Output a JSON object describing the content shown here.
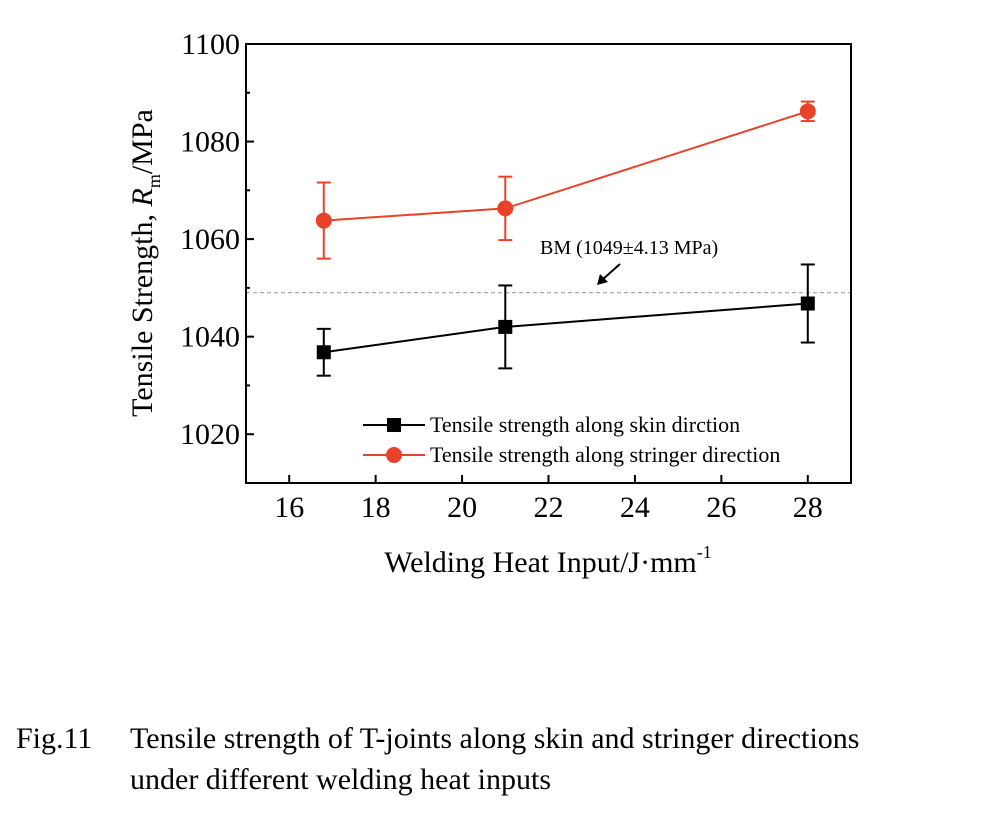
{
  "chart_data": {
    "type": "line",
    "xlabel_main": "Welding Heat Input/J",
    "xlabel_dot": "·",
    "xlabel_unit": "mm",
    "xlabel_sup": "-1",
    "ylabel_main": "Tensile Strength, ",
    "ylabel_italic": "R",
    "ylabel_sub": "m",
    "ylabel_unit": "/MPa",
    "xlim": [
      15,
      29
    ],
    "ylim": [
      1010,
      1100
    ],
    "xticks": [
      16,
      18,
      20,
      22,
      24,
      26,
      28
    ],
    "yticks": [
      1020,
      1040,
      1060,
      1080,
      1100
    ],
    "series": [
      {
        "name": "Tensile strength along skin dirction",
        "color": "#000000",
        "marker": "square",
        "x": [
          16.8,
          21.0,
          28.0
        ],
        "y": [
          1036.8,
          1042.0,
          1046.8
        ],
        "yerr": [
          4.8,
          8.5,
          8.0
        ]
      },
      {
        "name": "Tensile strength along stringer direction",
        "color": "#e8432a",
        "marker": "circle",
        "x": [
          16.8,
          21.0,
          28.0
        ],
        "y": [
          1063.8,
          1066.3,
          1086.2
        ],
        "yerr": [
          7.8,
          6.5,
          2.0
        ]
      }
    ],
    "reference_line": {
      "y": 1049,
      "label": "BM (1049±4.13 MPa)",
      "color": "#999999",
      "style": "dashed"
    },
    "legend_position": "bottom-right",
    "grid": false
  },
  "caption": {
    "number": "Fig.11",
    "line1": "Tensile strength of T-joints along skin and stringer directions",
    "line2": "under different welding heat inputs"
  }
}
